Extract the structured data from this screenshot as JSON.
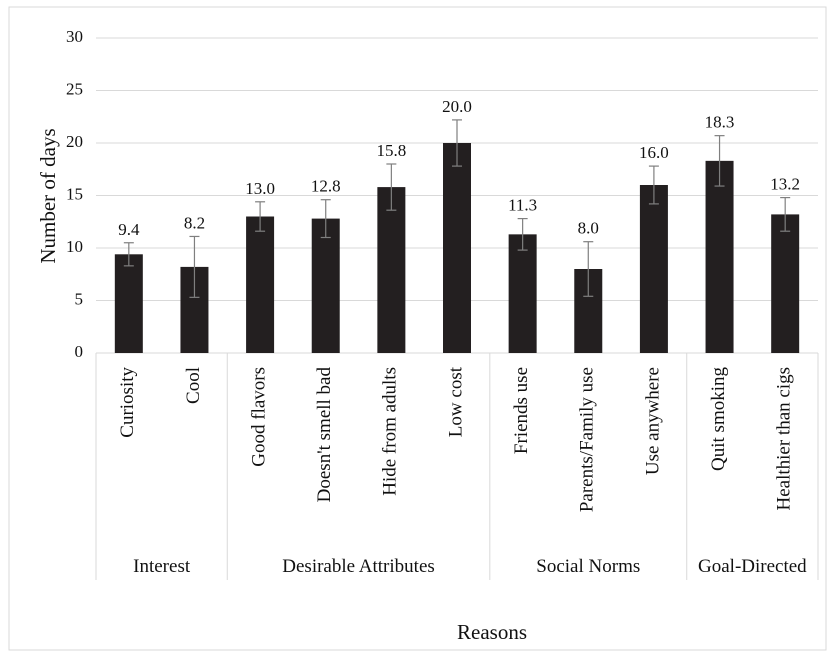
{
  "chart_data": {
    "type": "bar",
    "title": "",
    "xlabel": "Reasons",
    "ylabel": "Number of days",
    "ylim": [
      0,
      30
    ],
    "yticks": [
      0,
      5,
      10,
      15,
      20,
      25,
      30
    ],
    "grid": true,
    "legend": "none",
    "bar_color": "#231f20",
    "grid_color": "#d9d9d9",
    "errorbar_color": "#7f7f7f",
    "categories": [
      "Curiosity",
      "Cool",
      "Good flavors",
      "Doesn't smell bad",
      "Hide from adults",
      "Low cost",
      "Friends use",
      "Parents/Family use",
      "Use anywhere",
      "Quit smoking",
      "Healthier than cigs"
    ],
    "values": [
      9.4,
      8.2,
      13.0,
      12.8,
      15.8,
      20.0,
      11.3,
      8.0,
      16.0,
      18.3,
      13.2
    ],
    "value_labels": [
      "9.4",
      "8.2",
      "13.0",
      "12.8",
      "15.8",
      "20.0",
      "11.3",
      "8.0",
      "16.0",
      "18.3",
      "13.2"
    ],
    "error": [
      1.1,
      2.9,
      1.4,
      1.8,
      2.2,
      2.2,
      1.5,
      2.6,
      1.8,
      2.4,
      1.6
    ],
    "groups": [
      {
        "name": "Interest",
        "start": 0,
        "end": 1
      },
      {
        "name": "Desirable Attributes",
        "start": 2,
        "end": 5
      },
      {
        "name": "Social Norms",
        "start": 6,
        "end": 8
      },
      {
        "name": "Goal-Directed",
        "start": 9,
        "end": 10
      }
    ]
  }
}
